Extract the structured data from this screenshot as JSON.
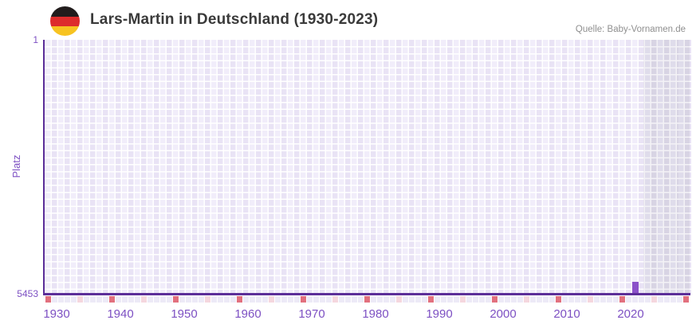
{
  "header": {
    "title": "Lars-Martin in Deutschland (1930-2023)",
    "flag_icon": "germany-flag-circle",
    "source": "Quelle: Baby-Vornamen.de"
  },
  "chart_data": {
    "type": "bar",
    "title": "Lars-Martin in Deutschland (1930-2023)",
    "xlabel": "",
    "ylabel": "Platz",
    "y_axis": {
      "min": 1,
      "max": 5453,
      "inverted": true,
      "top_tick_label": "1",
      "bottom_tick_label": "5453"
    },
    "x_axis": {
      "start_year": 1930,
      "end_year": 2030,
      "data_end_year": 2023,
      "ticks": [
        1930,
        1940,
        1950,
        1960,
        1970,
        1980,
        1990,
        2000,
        2010,
        2020
      ]
    },
    "series": [
      {
        "name": "Platz",
        "points": [
          {
            "year": 2022,
            "rank": 5200
          }
        ]
      }
    ],
    "future_region": {
      "start_year": 2024,
      "end_year": 2030
    },
    "grid": true,
    "legend": false,
    "colors": {
      "bar": "#8b51c9",
      "axis_line": "#5c2e99",
      "tick_label": "#7d50c3",
      "grid_cell_light": "#f1edfa",
      "grid_cell_dark": "#e9e3f5",
      "future_cell_light": "#dfdceb",
      "future_cell_dark": "#d8d4e4",
      "marker_decade": "#e2707e",
      "marker_half_decade": "#f5d7de",
      "marker_default": "#edeaf7"
    }
  }
}
